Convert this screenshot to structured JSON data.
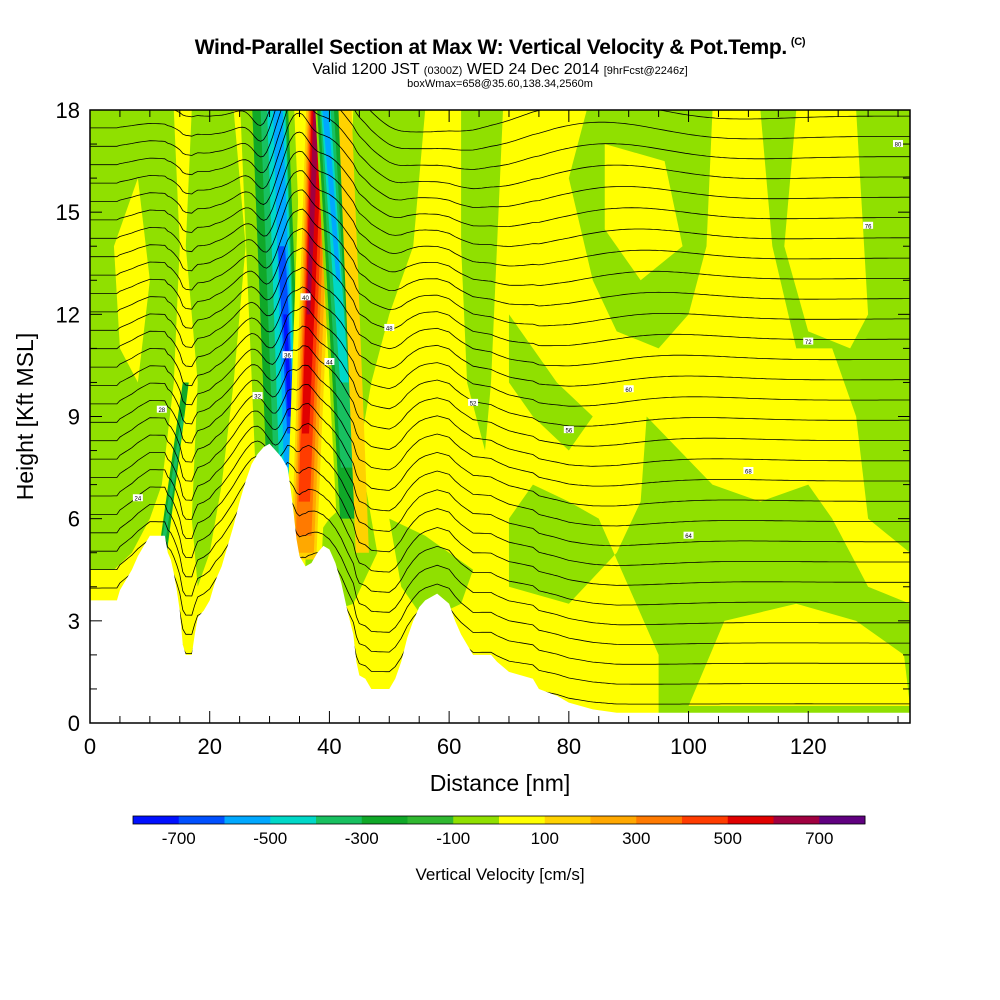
{
  "header": {
    "title": "Wind-Parallel Section at Max W: Vertical Velocity & Pot.Temp.",
    "title_badge": "(C)",
    "subtitle_a": "Valid 1200 JST",
    "subtitle_b": "(0300Z)",
    "subtitle_c": "WED 24 Dec 2014",
    "subtitle_d": "[9hrFcst@2246z]",
    "subtitle2": "boxWmax=658@35.60,138.34,2560m"
  },
  "chart_data": {
    "type": "heatmap",
    "xlabel": "Distance [nm]",
    "ylabel": "Height [Kft MSL]",
    "xlim": [
      0,
      137
    ],
    "ylim": [
      0,
      18
    ],
    "x_ticks": [
      "0",
      "20",
      "40",
      "60",
      "80",
      "100",
      "120"
    ],
    "x_tick_values": [
      0,
      20,
      40,
      60,
      80,
      100,
      120
    ],
    "y_ticks": [
      "0",
      "3",
      "6",
      "9",
      "12",
      "15",
      "18"
    ],
    "y_tick_values": [
      0,
      3,
      6,
      9,
      12,
      15,
      18
    ],
    "terrain": [
      [
        0,
        3.6
      ],
      [
        4.5,
        3.6
      ],
      [
        5,
        3.9
      ],
      [
        6,
        4.2
      ],
      [
        7,
        4.5
      ],
      [
        8,
        4.9
      ],
      [
        9,
        5.2
      ],
      [
        10,
        5.5
      ],
      [
        12.5,
        5.5
      ],
      [
        13,
        5.0
      ],
      [
        13.5,
        4.8
      ],
      [
        14,
        4.4
      ],
      [
        14.5,
        3.9
      ],
      [
        15,
        3.3
      ],
      [
        15.5,
        2.3
      ],
      [
        16,
        2.0
      ],
      [
        17,
        2.0
      ],
      [
        17.5,
        2.6
      ],
      [
        18,
        3.1
      ],
      [
        19,
        3.3
      ],
      [
        20,
        3.6
      ],
      [
        21,
        4.2
      ],
      [
        22,
        4.6
      ],
      [
        23,
        5.2
      ],
      [
        24,
        5.8
      ],
      [
        25,
        6.5
      ],
      [
        26,
        7.1
      ],
      [
        27,
        7.6
      ],
      [
        28,
        7.9
      ],
      [
        29,
        8.1
      ],
      [
        30,
        8.2
      ],
      [
        31,
        8.0
      ],
      [
        32,
        7.8
      ],
      [
        33,
        7.5
      ],
      [
        33.5,
        6.9
      ],
      [
        34,
        6.2
      ],
      [
        34.5,
        5.4
      ],
      [
        35,
        4.9
      ],
      [
        36,
        4.6
      ],
      [
        37,
        4.7
      ],
      [
        38,
        5.0
      ],
      [
        39,
        5.2
      ],
      [
        40,
        5.1
      ],
      [
        41,
        4.7
      ],
      [
        42,
        4.1
      ],
      [
        43,
        3.3
      ],
      [
        44,
        2.6
      ],
      [
        44.5,
        1.8
      ],
      [
        45,
        1.4
      ],
      [
        46,
        1.3
      ],
      [
        47,
        1.0
      ],
      [
        50,
        1.0
      ],
      [
        51,
        1.3
      ],
      [
        52,
        1.8
      ],
      [
        53,
        2.5
      ],
      [
        54,
        3.0
      ],
      [
        55,
        3.4
      ],
      [
        56,
        3.6
      ],
      [
        58,
        3.8
      ],
      [
        60,
        3.5
      ],
      [
        61,
        3.0
      ],
      [
        62,
        2.6
      ],
      [
        63,
        2.3
      ],
      [
        64,
        2.0
      ],
      [
        67,
        2.0
      ],
      [
        68,
        1.8
      ],
      [
        70,
        1.5
      ],
      [
        74,
        1.3
      ],
      [
        75,
        1.0
      ],
      [
        78,
        0.8
      ],
      [
        80,
        0.6
      ],
      [
        84,
        0.4
      ],
      [
        88,
        0.3
      ],
      [
        92,
        0.3
      ],
      [
        137,
        0.3
      ]
    ],
    "updraft_core": {
      "name": "max W updraft",
      "x_bottom": 35.5,
      "x_top": 40.5,
      "w_max_cms": 658
    },
    "theta_labels": [
      "20",
      "24",
      "28",
      "32",
      "36",
      "40",
      "44",
      "48",
      "52",
      "56",
      "60",
      "64",
      "68",
      "72",
      "76",
      "80"
    ],
    "colorbar": {
      "label": "Vertical Velocity [cm/s]",
      "tick_labels": [
        "-700",
        "-500",
        "-300",
        "-100",
        "100",
        "300",
        "500",
        "700"
      ],
      "tick_values": [
        -700,
        -500,
        -300,
        -100,
        100,
        300,
        500,
        700
      ],
      "min": -800,
      "max": 800,
      "step": 100,
      "colors": [
        "#0010ff",
        "#0050ff",
        "#00a8ff",
        "#00d8c8",
        "#18c060",
        "#10a828",
        "#30b830",
        "#90e000",
        "#ffff00",
        "#ffd200",
        "#ffa800",
        "#ff7a00",
        "#ff3c00",
        "#e00000",
        "#a00040",
        "#600080"
      ]
    },
    "grid": false
  }
}
